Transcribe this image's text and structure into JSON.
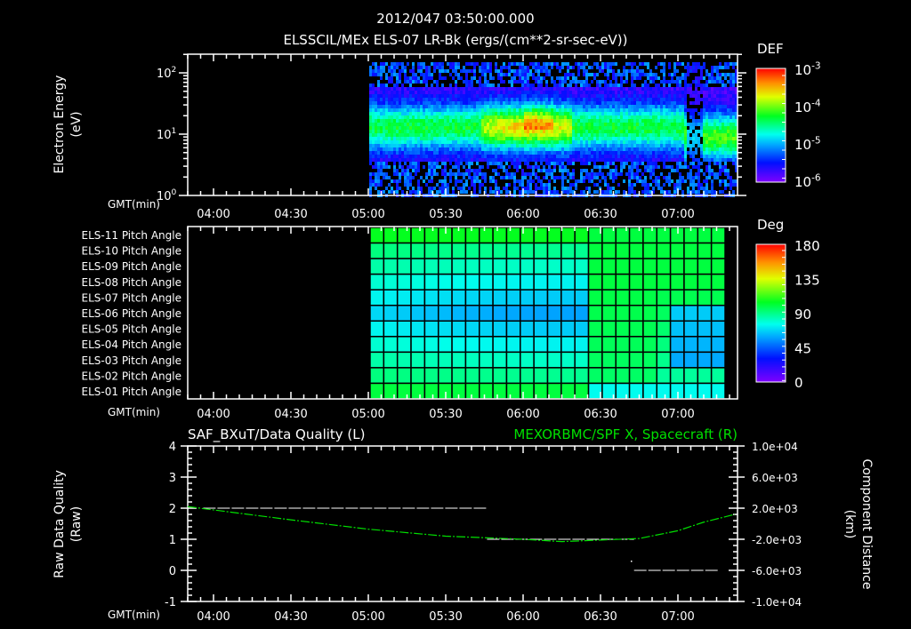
{
  "header": {
    "timestamp": "2012/047 03:50:00.000",
    "title": "ELSSCIL/MEx ELS-07 LR-Bk  (ergs/(cm**2-sr-sec-eV))"
  },
  "time_axis": {
    "label": "GMT(min)",
    "ticks": [
      "04:00",
      "04:30",
      "05:00",
      "05:30",
      "06:00",
      "06:30",
      "07:00"
    ]
  },
  "panel1": {
    "ylabel": "Electron Energy",
    "yunit": "(eV)",
    "yticks": [
      "10^0",
      "10^1",
      "10^2"
    ],
    "colorbar": {
      "title": "DEF",
      "ticks": [
        "10^-3",
        "10^-4",
        "10^-5",
        "10^-6"
      ]
    }
  },
  "panel2": {
    "rows": [
      "ELS-11 Pitch Angle",
      "ELS-10 Pitch Angle",
      "ELS-09 Pitch Angle",
      "ELS-08 Pitch Angle",
      "ELS-07 Pitch Angle",
      "ELS-06 Pitch Angle",
      "ELS-05 Pitch Angle",
      "ELS-04 Pitch Angle",
      "ELS-03 Pitch Angle",
      "ELS-02 Pitch Angle",
      "ELS-01 Pitch Angle"
    ],
    "colorbar": {
      "title": "Deg",
      "ticks": [
        "180",
        "135",
        "90",
        "45",
        "0"
      ]
    }
  },
  "panel3": {
    "left_title": "SAF_BXuT/Data Quality (L)",
    "right_title": "MEXORBMC/SPF X, Spacecraft (R)",
    "right_title_color": "#00e000",
    "ylabel_left": "Raw Data Quality",
    "yunit_left": "(Raw)",
    "yticks_left": [
      "4",
      "3",
      "2",
      "1",
      "0",
      "-1"
    ],
    "ylabel_right": "Component Distance",
    "yunit_right": "(km)",
    "yticks_right": [
      "1.0e+04",
      "6.0e+03",
      "2.0e+03",
      "-2.0e+03",
      "-6.0e+03",
      "-1.0e+04"
    ]
  },
  "chart_data": [
    {
      "type": "heatmap",
      "title": "ELSSCIL/MEx ELS-07 LR-Bk (ergs/(cm**2-sr-sec-eV))",
      "xlabel": "GMT(min)",
      "ylabel": "Electron Energy (eV)",
      "yscale": "log",
      "ylim": [
        1,
        200
      ],
      "xlim": [
        "03:50",
        "07:22"
      ],
      "data_start": "05:00",
      "colorbar": {
        "label": "DEF",
        "range": [
          1e-06,
          0.001
        ],
        "scale": "log"
      },
      "description": "Broad band of flux peaked ~15-30 eV across 05:00-07:22; enhanced green/yellow flux ~05:45-06:25 reaching ~1e-4; dropout near 06:58-07:02; low-energy noise below ~5 eV"
    },
    {
      "type": "heatmap",
      "title": "Pitch Angle",
      "xlabel": "GMT(min)",
      "rows": [
        "ELS-11",
        "ELS-10",
        "ELS-09",
        "ELS-08",
        "ELS-07",
        "ELS-06",
        "ELS-05",
        "ELS-04",
        "ELS-03",
        "ELS-02",
        "ELS-01"
      ],
      "colorbar": {
        "label": "Deg",
        "range": [
          0,
          180
        ]
      },
      "data_start": "05:00",
      "data_end": "07:16",
      "columns": 26,
      "description": "Values ~70-110 deg; row ELS-11 greenest (~100-115), middle rows cyan (~60-75) near 06:00-06:25; after 06:33 upper rows green (~100), lower-middle rows at 07:05-07:16 blue (~45-55)"
    },
    {
      "type": "line",
      "title": "SAF_BXuT/Data Quality (L) / MEXORBMC/SPF X, Spacecraft (R)",
      "xlabel": "GMT(min)",
      "series": [
        {
          "name": "Data Quality (L)",
          "axis": "left",
          "color": "#ffffff",
          "segments": [
            {
              "x": [
                "03:56",
                "05:46"
              ],
              "y": 2
            },
            {
              "x": [
                "05:46",
                "06:43"
              ],
              "y": 1
            },
            {
              "x": [
                "06:43",
                "07:16"
              ],
              "y": 0
            }
          ]
        },
        {
          "name": "SPF X (R)",
          "axis": "right",
          "color": "#00e000",
          "x": [
            "03:50",
            "04:30",
            "05:00",
            "05:30",
            "06:00",
            "06:15",
            "06:30",
            "06:45",
            "07:00",
            "07:10",
            "07:22"
          ],
          "values": [
            2200,
            500,
            -700,
            -1600,
            -2000,
            -2300,
            -2100,
            -1900,
            -900,
            200,
            1200
          ]
        }
      ],
      "ylim_left": [
        -1,
        4
      ],
      "ylim_right": [
        -10000,
        10000
      ]
    }
  ]
}
